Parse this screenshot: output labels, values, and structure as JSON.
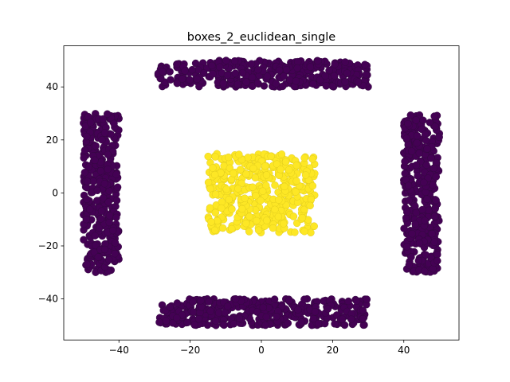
{
  "chart_data": {
    "type": "scatter",
    "title": "boxes_2_euclidean_single",
    "xlabel": "",
    "ylabel": "",
    "xlim": [
      -55.5,
      55.5
    ],
    "ylim": [
      -55.5,
      55.5
    ],
    "xticks": [
      -40,
      -20,
      0,
      20,
      40
    ],
    "yticks": [
      -40,
      -20,
      0,
      20,
      40
    ],
    "xtick_labels": [
      "−40",
      "−20",
      "0",
      "20",
      "40"
    ],
    "ytick_labels": [
      "−40",
      "−20",
      "0",
      "20",
      "40"
    ],
    "grid": false,
    "legend": "none",
    "colors": {
      "cluster_0": "#440154",
      "cluster_1": "#fde725",
      "edge_0": "#2e0a3a",
      "edge_1": "#d9c51c"
    },
    "series": [
      {
        "cluster": 0,
        "color": "#440154",
        "regions": [
          {
            "x": [
              -29,
              30
            ],
            "y": [
              40,
              50
            ],
            "count": 380
          },
          {
            "x": [
              -29,
              30
            ],
            "y": [
              -50,
              -40
            ],
            "count": 380
          },
          {
            "x": [
              -50,
              -40
            ],
            "y": [
              -30,
              30
            ],
            "count": 380
          },
          {
            "x": [
              40,
              50
            ],
            "y": [
              -30,
              30
            ],
            "count": 380
          }
        ]
      },
      {
        "cluster": 1,
        "color": "#fde725",
        "regions": [
          {
            "x": [
              -15,
              15
            ],
            "y": [
              -15,
              15
            ],
            "count": 420
          }
        ]
      }
    ]
  }
}
